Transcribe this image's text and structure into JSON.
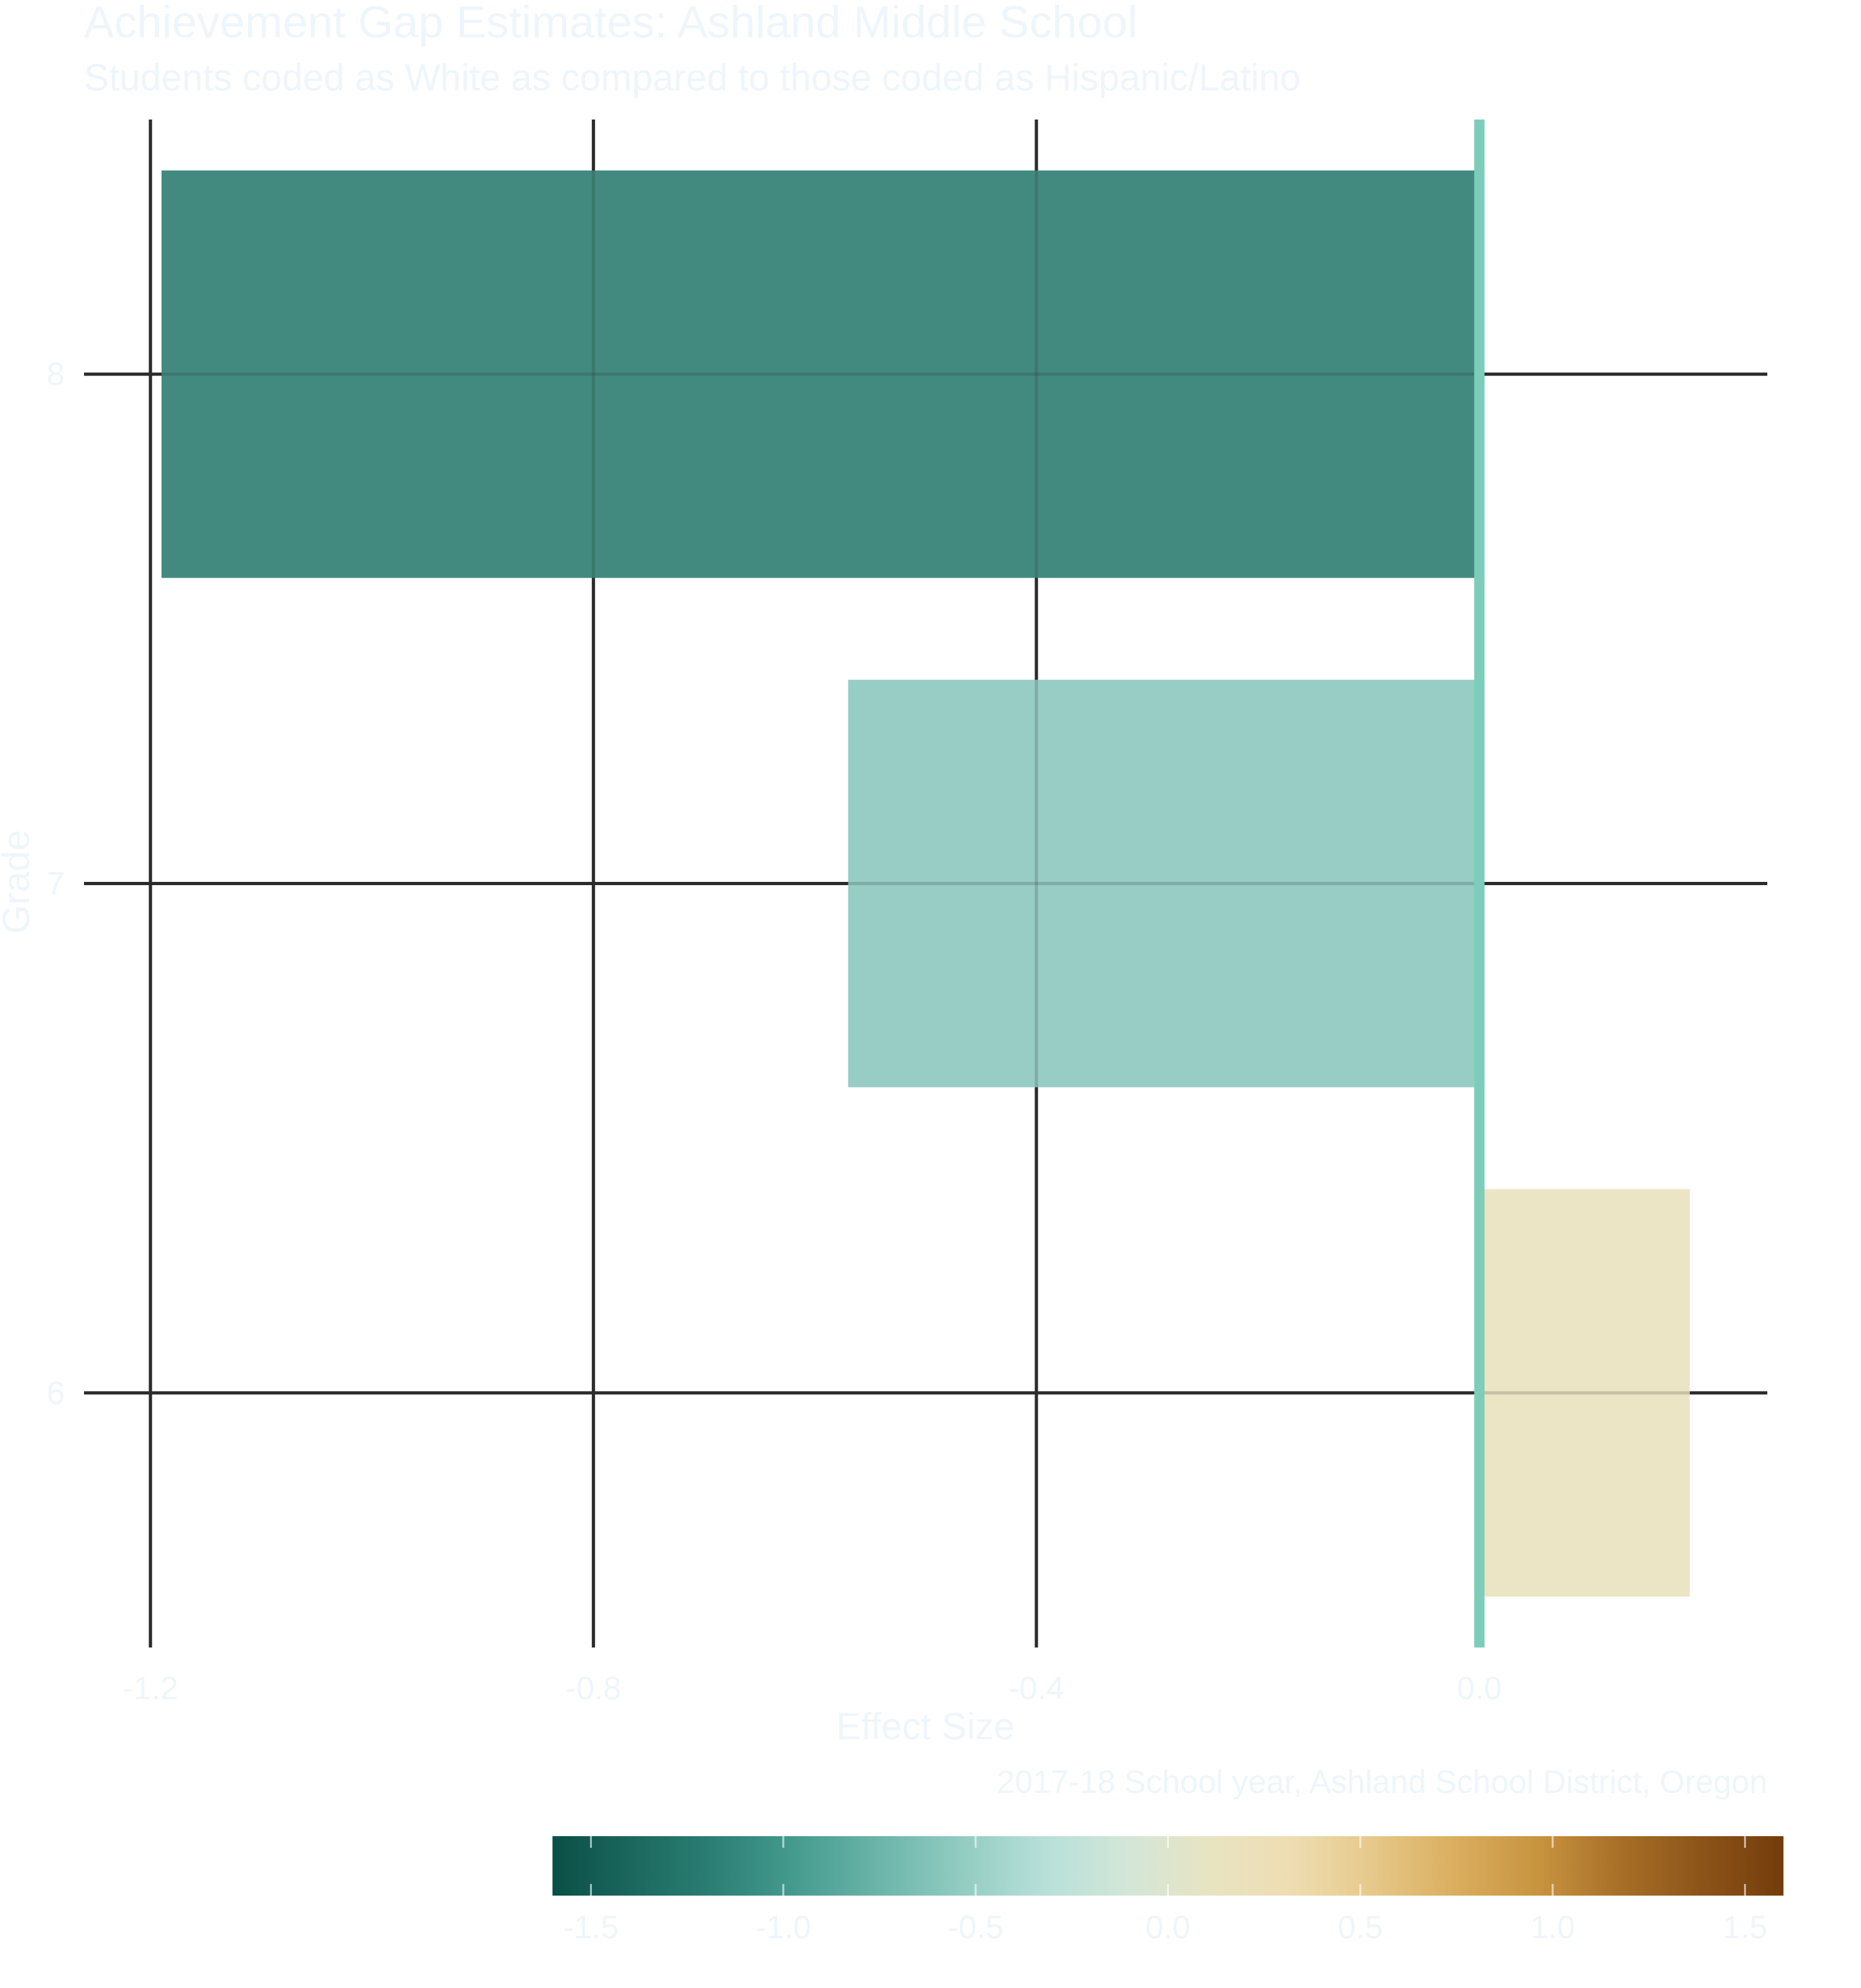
{
  "colors": {
    "text": "#EEF6FB",
    "grid": "#2B2B2B",
    "zero_line": "#7DCDBB"
  },
  "chart_data": {
    "type": "bar",
    "orientation": "horizontal",
    "title": "Achievement Gap Estimates: Ashland Middle School",
    "subtitle": "Students coded as White as compared to those coded as Hispanic/Latino",
    "caption": "2017-18 School year, Ashland School District, Oregon",
    "xlabel": "Effect Size",
    "ylabel": "Grade",
    "categories": [
      "6",
      "7",
      "8"
    ],
    "values": [
      0.19,
      -0.57,
      -1.19
    ],
    "bar_colors": [
      "#ECE5C5",
      "#97CDC5",
      "#428A7F"
    ],
    "xlim": [
      -1.26,
      0.26
    ],
    "x_ticks": [
      -1.2,
      -0.8,
      -0.4,
      0.0
    ],
    "x_tick_labels": [
      "-1.2",
      "-0.8",
      "-0.4",
      "0.0"
    ],
    "grid": true,
    "legend": {
      "type": "colorbar",
      "position": "bottom",
      "range": [
        -1.6,
        1.6
      ],
      "ticks": [
        -1.5,
        -1.0,
        -0.5,
        0.0,
        0.5,
        1.0,
        1.5
      ],
      "tick_labels": [
        "-1.5",
        "-1.0",
        "-0.5",
        "0.0",
        "0.5",
        "1.0",
        "1.5"
      ],
      "palette": [
        "#0A4F46",
        "#1B685E",
        "#2C8075",
        "#479C90",
        "#6CB5AA",
        "#93CCC2",
        "#B7E0D9",
        "#D3E6D8",
        "#E8E4C2",
        "#EEDDB2",
        "#E6C88A",
        "#DAAE5E",
        "#C89440",
        "#A86F28",
        "#8C5419",
        "#743C0B"
      ]
    }
  }
}
